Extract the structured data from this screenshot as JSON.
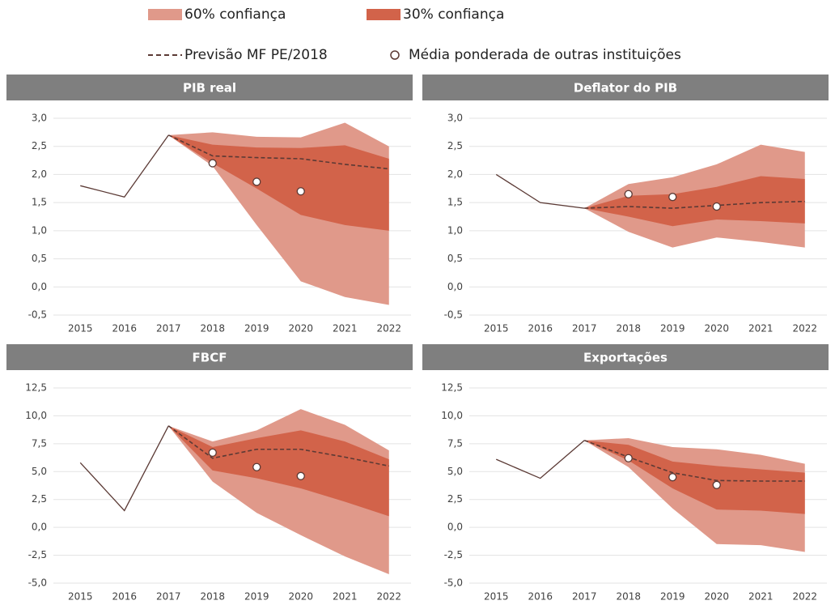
{
  "legend": [
    {
      "name": "60% confiança",
      "color": "#e0998a",
      "style": "band"
    },
    {
      "name": "30% confiança",
      "color": "#d2634a",
      "style": "band"
    },
    {
      "name": "Previsão MF PE/2018",
      "color": "#5b3a35",
      "style": "dashed"
    },
    {
      "name": "Média ponderada de outras instituições",
      "color": "#5b3a35",
      "style": "circle"
    }
  ],
  "line_color": "#5b3a35",
  "chart_data": [
    {
      "type": "fan",
      "title": "PIB real",
      "categories": [
        "2015",
        "2016",
        "2017",
        "2018",
        "2019",
        "2020",
        "2021",
        "2022"
      ],
      "ylim": [
        -0.5,
        3.0
      ],
      "yticks": [
        {
          "value": -0.5,
          "label": "-0,5"
        },
        {
          "value": 0,
          "label": "0,0"
        },
        {
          "value": 0.5,
          "label": "0,5"
        },
        {
          "value": 1,
          "label": "1,0"
        },
        {
          "value": 1.5,
          "label": "1,5"
        },
        {
          "value": 2,
          "label": "2,0"
        },
        {
          "value": 2.5,
          "label": "2,5"
        },
        {
          "value": 3,
          "label": "3,0"
        }
      ],
      "history": [
        1.8,
        1.6,
        2.7,
        null,
        null,
        null,
        null,
        null
      ],
      "forecast": [
        null,
        null,
        2.7,
        2.33,
        2.3,
        2.28,
        2.18,
        2.1
      ],
      "points": [
        null,
        null,
        null,
        2.2,
        1.87,
        1.7,
        null,
        null
      ],
      "band60_upper": [
        null,
        null,
        2.7,
        2.75,
        2.67,
        2.66,
        2.92,
        2.5
      ],
      "band60_lower": [
        null,
        null,
        2.7,
        2.15,
        1.1,
        0.1,
        -0.18,
        -0.32
      ],
      "band30_upper": [
        null,
        null,
        2.7,
        2.53,
        2.48,
        2.47,
        2.52,
        2.28
      ],
      "band30_lower": [
        null,
        null,
        2.7,
        2.2,
        1.75,
        1.28,
        1.1,
        1.0
      ],
      "grid": true
    },
    {
      "type": "fan",
      "title": "Deflator do PIB",
      "categories": [
        "2015",
        "2016",
        "2017",
        "2018",
        "2019",
        "2020",
        "2021",
        "2022"
      ],
      "ylim": [
        -0.5,
        3.0
      ],
      "yticks": [
        {
          "value": -0.5,
          "label": "-0,5"
        },
        {
          "value": 0,
          "label": "0,0"
        },
        {
          "value": 0.5,
          "label": "0,5"
        },
        {
          "value": 1,
          "label": "1,0"
        },
        {
          "value": 1.5,
          "label": "1,5"
        },
        {
          "value": 2,
          "label": "2,0"
        },
        {
          "value": 2.5,
          "label": "2,5"
        },
        {
          "value": 3,
          "label": "3,0"
        }
      ],
      "history": [
        2.0,
        1.5,
        1.4,
        null,
        null,
        null,
        null,
        null
      ],
      "forecast": [
        null,
        null,
        1.4,
        1.43,
        1.4,
        1.45,
        1.5,
        1.52
      ],
      "points": [
        null,
        null,
        null,
        1.65,
        1.6,
        1.43,
        null,
        null
      ],
      "band60_upper": [
        null,
        null,
        1.4,
        1.83,
        1.95,
        2.18,
        2.53,
        2.4
      ],
      "band60_lower": [
        null,
        null,
        1.4,
        0.98,
        0.7,
        0.88,
        0.8,
        0.7
      ],
      "band30_upper": [
        null,
        null,
        1.4,
        1.62,
        1.65,
        1.78,
        1.97,
        1.92
      ],
      "band30_lower": [
        null,
        null,
        1.4,
        1.25,
        1.08,
        1.2,
        1.17,
        1.13
      ],
      "grid": true
    },
    {
      "type": "fan",
      "title": "FBCF",
      "categories": [
        "2015",
        "2016",
        "2017",
        "2018",
        "2019",
        "2020",
        "2021",
        "2022"
      ],
      "ylim": [
        -5,
        12.5
      ],
      "yticks": [
        {
          "value": -5,
          "label": "-5,0"
        },
        {
          "value": -2.5,
          "label": "-2,5"
        },
        {
          "value": 0,
          "label": "0,0"
        },
        {
          "value": 2.5,
          "label": "2,5"
        },
        {
          "value": 5,
          "label": "5,0"
        },
        {
          "value": 7.5,
          "label": "7,5"
        },
        {
          "value": 10,
          "label": "10,0"
        },
        {
          "value": 12.5,
          "label": "12,5"
        }
      ],
      "history": [
        5.8,
        1.5,
        9.1,
        null,
        null,
        null,
        null,
        null
      ],
      "forecast": [
        null,
        null,
        9.1,
        6.2,
        7.0,
        7.0,
        6.3,
        5.5
      ],
      "points": [
        null,
        null,
        null,
        6.7,
        5.4,
        4.6,
        null,
        null
      ],
      "band60_upper": [
        null,
        null,
        9.1,
        7.7,
        8.7,
        10.6,
        9.2,
        6.9
      ],
      "band60_lower": [
        null,
        null,
        9.1,
        4.1,
        1.3,
        -0.7,
        -2.6,
        -4.2
      ],
      "band30_upper": [
        null,
        null,
        9.1,
        7.2,
        8.0,
        8.7,
        7.7,
        6.1
      ],
      "band30_lower": [
        null,
        null,
        9.1,
        5.1,
        4.4,
        3.5,
        2.3,
        1.0
      ],
      "grid": true
    },
    {
      "type": "fan",
      "title": "Exportações",
      "categories": [
        "2015",
        "2016",
        "2017",
        "2018",
        "2019",
        "2020",
        "2021",
        "2022"
      ],
      "ylim": [
        -5,
        12.5
      ],
      "yticks": [
        {
          "value": -5,
          "label": "-5,0"
        },
        {
          "value": -2.5,
          "label": "-2,5"
        },
        {
          "value": 0,
          "label": "0,0"
        },
        {
          "value": 2.5,
          "label": "2,5"
        },
        {
          "value": 5,
          "label": "5,0"
        },
        {
          "value": 7.5,
          "label": "7,5"
        },
        {
          "value": 10,
          "label": "10,0"
        },
        {
          "value": 12.5,
          "label": "12,5"
        }
      ],
      "history": [
        6.1,
        4.4,
        7.8,
        null,
        null,
        null,
        null,
        null
      ],
      "forecast": [
        null,
        null,
        7.8,
        6.3,
        4.9,
        4.2,
        4.15,
        4.15
      ],
      "points": [
        null,
        null,
        null,
        6.2,
        4.5,
        3.8,
        null,
        null
      ],
      "band60_upper": [
        null,
        null,
        7.8,
        8.0,
        7.2,
        7.0,
        6.5,
        5.7
      ],
      "band60_lower": [
        null,
        null,
        7.8,
        5.4,
        1.7,
        -1.5,
        -1.6,
        -2.2
      ],
      "band30_upper": [
        null,
        null,
        7.8,
        7.4,
        5.9,
        5.5,
        5.2,
        4.9
      ],
      "band30_lower": [
        null,
        null,
        7.8,
        6.0,
        3.5,
        1.6,
        1.5,
        1.2
      ],
      "grid": true
    }
  ]
}
